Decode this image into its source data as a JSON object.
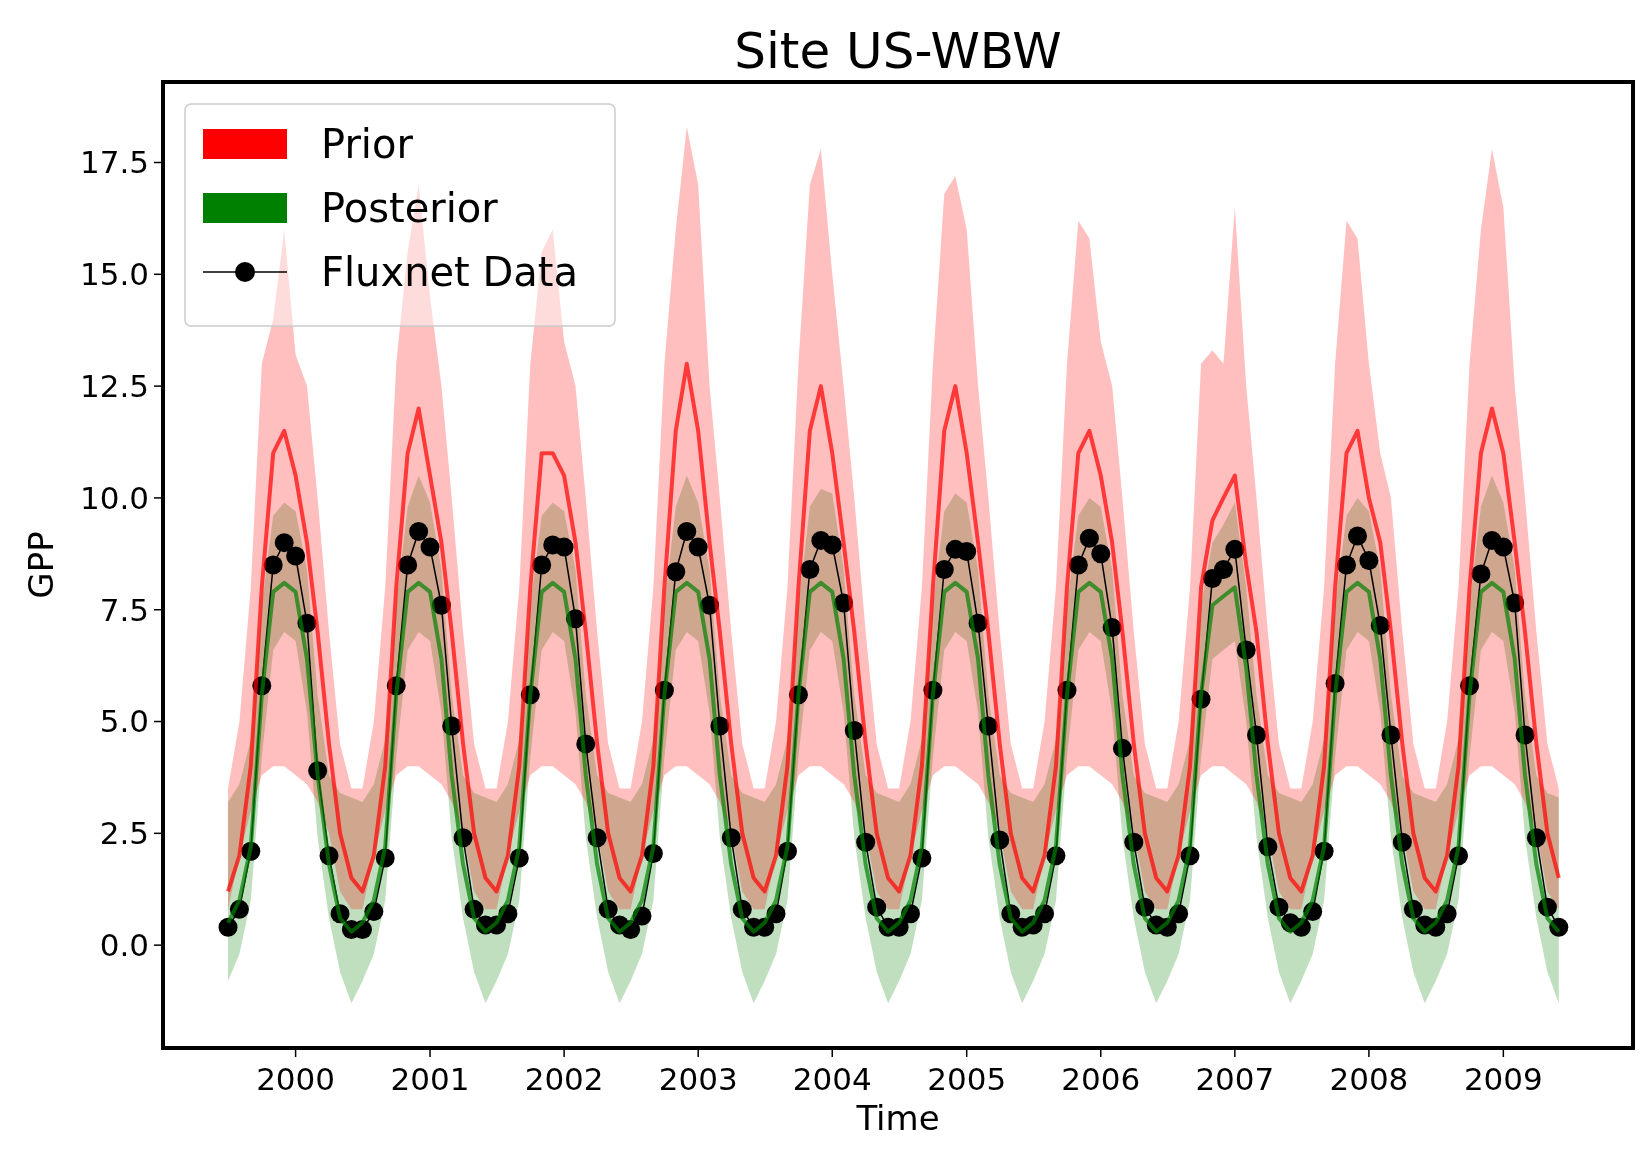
{
  "chart_data": {
    "type": "line",
    "title": "Site US-WBW",
    "xlabel": "Time",
    "ylabel": "GPP",
    "x": [
      "1999-07",
      "1999-08",
      "1999-09",
      "1999-10",
      "1999-11",
      "1999-12",
      "2000-01",
      "2000-02",
      "2000-03",
      "2000-04",
      "2000-05",
      "2000-06",
      "2000-07",
      "2000-08",
      "2000-09",
      "2000-10",
      "2000-11",
      "2000-12",
      "2001-01",
      "2001-02",
      "2001-03",
      "2001-04",
      "2001-05",
      "2001-06",
      "2001-07",
      "2001-08",
      "2001-09",
      "2001-10",
      "2001-11",
      "2001-12",
      "2002-01",
      "2002-02",
      "2002-03",
      "2002-04",
      "2002-05",
      "2002-06",
      "2002-07",
      "2002-08",
      "2002-09",
      "2002-10",
      "2002-11",
      "2002-12",
      "2003-01",
      "2003-02",
      "2003-03",
      "2003-04",
      "2003-05",
      "2003-06",
      "2003-07",
      "2003-08",
      "2003-09",
      "2003-10",
      "2003-11",
      "2003-12",
      "2004-01",
      "2004-02",
      "2004-03",
      "2004-04",
      "2004-05",
      "2004-06",
      "2004-07",
      "2004-08",
      "2004-09",
      "2004-10",
      "2004-11",
      "2004-12",
      "2005-01",
      "2005-02",
      "2005-03",
      "2005-04",
      "2005-05",
      "2005-06",
      "2005-07",
      "2005-08",
      "2005-09",
      "2005-10",
      "2005-11",
      "2005-12",
      "2006-01",
      "2006-02",
      "2006-03",
      "2006-04",
      "2006-05",
      "2006-06",
      "2006-07",
      "2006-08",
      "2006-09",
      "2006-10",
      "2006-11",
      "2006-12",
      "2007-01",
      "2007-02",
      "2007-03",
      "2007-04",
      "2007-05",
      "2007-06",
      "2007-07",
      "2007-08",
      "2007-09",
      "2007-10",
      "2007-11",
      "2007-12",
      "2008-01",
      "2008-02",
      "2008-03",
      "2008-04",
      "2008-05",
      "2008-06",
      "2008-07",
      "2008-08",
      "2008-09",
      "2008-10",
      "2008-11",
      "2008-12",
      "2009-01",
      "2009-02",
      "2009-03",
      "2009-04",
      "2009-05",
      "2009-06"
    ],
    "series": [
      {
        "name": "Prior",
        "marker": "none",
        "color": "#ff0000",
        "values": [
          1.2,
          2.0,
          4.0,
          8.0,
          11.0,
          11.5,
          10.5,
          9.0,
          7.0,
          4.5,
          2.5,
          1.5,
          1.2,
          2.0,
          4.0,
          8.0,
          11.0,
          12.0,
          10.5,
          9.0,
          7.0,
          4.5,
          2.5,
          1.5,
          1.2,
          2.0,
          4.0,
          8.0,
          11.0,
          11.0,
          10.5,
          9.0,
          7.0,
          4.5,
          2.5,
          1.5,
          1.2,
          2.0,
          4.0,
          8.0,
          11.5,
          13.0,
          11.5,
          9.0,
          7.0,
          4.5,
          2.5,
          1.5,
          1.2,
          2.0,
          4.0,
          8.0,
          11.5,
          12.5,
          11.0,
          9.0,
          7.0,
          4.5,
          2.5,
          1.5,
          1.2,
          2.0,
          4.0,
          8.0,
          11.5,
          12.5,
          11.0,
          9.0,
          7.0,
          4.5,
          2.5,
          1.5,
          1.2,
          2.0,
          4.0,
          8.0,
          11.0,
          11.5,
          10.5,
          9.0,
          7.0,
          4.5,
          2.5,
          1.5,
          1.2,
          2.0,
          4.0,
          8.0,
          9.5,
          10.0,
          10.5,
          8.5,
          7.0,
          4.5,
          2.5,
          1.5,
          1.2,
          2.0,
          4.0,
          8.0,
          11.0,
          11.5,
          10.0,
          9.0,
          7.0,
          4.5,
          2.5,
          1.5,
          1.2,
          2.0,
          4.0,
          8.0,
          11.0,
          12.0,
          11.0,
          9.0,
          7.0,
          4.5,
          2.5,
          1.5
        ],
        "lower": [
          0.8,
          2.0,
          3.0,
          3.8,
          4.0,
          4.0,
          3.8,
          3.6,
          3.2,
          2.5,
          1.2,
          0.8,
          0.8,
          2.0,
          3.0,
          3.8,
          4.0,
          4.0,
          3.8,
          3.6,
          3.2,
          2.5,
          1.2,
          0.8,
          0.8,
          2.0,
          3.0,
          3.8,
          4.0,
          4.0,
          3.8,
          3.6,
          3.2,
          2.5,
          1.2,
          0.8,
          0.8,
          2.0,
          3.0,
          3.8,
          4.0,
          4.0,
          3.8,
          3.6,
          3.2,
          2.5,
          1.2,
          0.8,
          0.8,
          2.0,
          3.0,
          3.8,
          4.0,
          4.0,
          3.8,
          3.6,
          3.2,
          2.5,
          1.2,
          0.8,
          0.8,
          2.0,
          3.0,
          3.8,
          4.0,
          4.0,
          3.8,
          3.6,
          3.2,
          2.5,
          1.2,
          0.8,
          0.8,
          2.0,
          3.0,
          3.8,
          4.0,
          4.0,
          3.8,
          3.6,
          3.2,
          2.5,
          1.2,
          0.8,
          0.8,
          2.0,
          3.0,
          3.8,
          4.0,
          4.0,
          3.8,
          3.6,
          3.2,
          2.5,
          1.2,
          0.8,
          0.8,
          2.0,
          3.0,
          3.8,
          4.0,
          4.0,
          3.8,
          3.6,
          3.2,
          2.5,
          1.2,
          0.8,
          0.8,
          2.0,
          3.0,
          3.8,
          4.0,
          4.0,
          3.8,
          3.6,
          3.2,
          2.5,
          1.2,
          0.8
        ],
        "upper": [
          3.5,
          5.0,
          8.0,
          13.0,
          14.0,
          16.0,
          13.2,
          12.5,
          10.0,
          7.0,
          4.5,
          3.5,
          3.5,
          5.0,
          8.0,
          13.0,
          15.5,
          17.0,
          14.5,
          12.5,
          10.0,
          7.0,
          4.5,
          3.5,
          3.5,
          5.0,
          8.0,
          13.0,
          15.5,
          16.0,
          13.5,
          12.5,
          10.0,
          7.0,
          4.5,
          3.5,
          3.5,
          5.0,
          8.0,
          13.0,
          16.0,
          18.3,
          17.0,
          12.5,
          10.0,
          7.0,
          4.5,
          3.5,
          3.5,
          5.0,
          8.0,
          13.0,
          17.0,
          17.8,
          15.0,
          12.5,
          10.0,
          7.0,
          4.5,
          3.5,
          3.5,
          5.0,
          8.0,
          13.0,
          16.8,
          17.2,
          16.0,
          12.5,
          10.0,
          7.0,
          4.5,
          3.5,
          3.5,
          5.0,
          8.0,
          13.0,
          16.2,
          15.8,
          13.5,
          12.5,
          10.0,
          7.0,
          4.5,
          3.5,
          3.5,
          5.0,
          8.0,
          13.0,
          13.3,
          13.0,
          16.5,
          12.5,
          10.0,
          7.0,
          4.5,
          3.5,
          3.5,
          5.0,
          8.0,
          13.0,
          16.2,
          15.8,
          13.0,
          11.0,
          10.0,
          7.0,
          4.5,
          3.5,
          3.5,
          5.0,
          8.0,
          13.0,
          16.0,
          17.8,
          16.5,
          12.5,
          10.0,
          7.0,
          4.5,
          3.5
        ]
      },
      {
        "name": "Posterior",
        "marker": "none",
        "color": "#008000",
        "values": [
          0.5,
          1.0,
          2.2,
          5.6,
          7.9,
          8.1,
          7.9,
          6.4,
          3.8,
          1.8,
          0.6,
          0.3,
          0.5,
          1.0,
          2.2,
          5.6,
          7.9,
          8.1,
          7.9,
          6.4,
          3.8,
          1.8,
          0.6,
          0.3,
          0.5,
          1.0,
          2.2,
          5.6,
          7.9,
          8.1,
          7.9,
          6.4,
          3.8,
          1.8,
          0.6,
          0.3,
          0.5,
          1.0,
          2.2,
          5.6,
          7.9,
          8.1,
          7.9,
          6.4,
          3.8,
          1.8,
          0.6,
          0.3,
          0.5,
          1.0,
          2.2,
          5.6,
          7.9,
          8.1,
          7.9,
          6.4,
          3.8,
          1.8,
          0.6,
          0.3,
          0.5,
          1.0,
          2.2,
          5.6,
          7.9,
          8.1,
          7.9,
          6.4,
          3.8,
          1.8,
          0.6,
          0.3,
          0.5,
          1.0,
          2.2,
          5.6,
          7.9,
          8.1,
          7.9,
          6.4,
          3.8,
          1.8,
          0.6,
          0.3,
          0.5,
          1.0,
          2.2,
          5.6,
          7.6,
          7.8,
          8.0,
          6.2,
          3.8,
          1.8,
          0.6,
          0.3,
          0.5,
          1.0,
          2.2,
          5.6,
          7.9,
          8.1,
          7.9,
          6.4,
          3.8,
          1.8,
          0.6,
          0.3,
          0.5,
          1.0,
          2.2,
          5.6,
          7.9,
          8.1,
          7.9,
          6.4,
          3.8,
          1.8,
          0.6,
          0.3
        ],
        "lower": [
          -0.8,
          -0.2,
          1.0,
          4.2,
          6.6,
          7.0,
          6.8,
          5.2,
          2.4,
          0.6,
          -0.6,
          -1.3,
          -0.8,
          -0.2,
          1.0,
          4.2,
          6.6,
          7.0,
          6.8,
          5.2,
          2.4,
          0.6,
          -0.6,
          -1.3,
          -0.8,
          -0.2,
          1.0,
          4.2,
          6.6,
          7.0,
          6.8,
          5.2,
          2.4,
          0.6,
          -0.6,
          -1.3,
          -0.8,
          -0.2,
          1.0,
          4.2,
          6.6,
          7.0,
          6.8,
          5.2,
          2.4,
          0.6,
          -0.6,
          -1.3,
          -0.8,
          -0.2,
          1.0,
          4.2,
          6.6,
          7.0,
          6.8,
          5.2,
          2.4,
          0.6,
          -0.6,
          -1.3,
          -0.8,
          -0.2,
          1.0,
          4.2,
          6.6,
          7.0,
          6.8,
          5.2,
          2.4,
          0.6,
          -0.6,
          -1.3,
          -0.8,
          -0.2,
          1.0,
          4.2,
          6.6,
          7.0,
          6.8,
          5.2,
          2.4,
          0.6,
          -0.6,
          -1.3,
          -0.8,
          -0.2,
          1.0,
          4.2,
          6.4,
          6.6,
          6.8,
          5.0,
          2.4,
          0.6,
          -0.6,
          -1.3,
          -0.8,
          -0.2,
          1.0,
          4.2,
          6.6,
          7.0,
          6.8,
          5.2,
          2.4,
          0.6,
          -0.6,
          -1.3,
          -0.8,
          -0.2,
          1.0,
          4.2,
          6.6,
          7.0,
          6.8,
          5.2,
          2.4,
          0.6,
          -0.6,
          -1.3
        ],
        "upper": [
          3.2,
          3.6,
          4.6,
          7.6,
          9.6,
          9.9,
          9.7,
          8.4,
          5.6,
          3.8,
          3.4,
          3.3,
          3.2,
          3.6,
          4.6,
          7.6,
          9.8,
          10.5,
          9.9,
          8.4,
          5.6,
          3.8,
          3.4,
          3.3,
          3.2,
          3.6,
          4.6,
          7.6,
          9.6,
          9.9,
          9.7,
          8.4,
          5.6,
          3.8,
          3.4,
          3.3,
          3.2,
          3.6,
          4.6,
          7.6,
          9.8,
          10.5,
          9.9,
          8.4,
          5.6,
          3.8,
          3.4,
          3.3,
          3.2,
          3.6,
          4.6,
          7.6,
          9.8,
          10.2,
          10.1,
          8.4,
          5.6,
          3.8,
          3.4,
          3.3,
          3.2,
          3.6,
          4.6,
          7.6,
          9.7,
          10.1,
          9.9,
          8.4,
          5.6,
          3.8,
          3.4,
          3.3,
          3.2,
          3.6,
          4.6,
          7.6,
          9.6,
          10.0,
          9.8,
          8.4,
          5.6,
          3.8,
          3.4,
          3.3,
          3.2,
          3.6,
          4.6,
          7.6,
          9.0,
          9.4,
          9.9,
          8.0,
          5.6,
          3.8,
          3.4,
          3.3,
          3.2,
          3.6,
          4.6,
          7.6,
          9.6,
          10.0,
          9.7,
          8.4,
          5.6,
          3.8,
          3.4,
          3.3,
          3.2,
          3.6,
          4.6,
          7.6,
          9.8,
          10.5,
          9.9,
          8.4,
          5.6,
          3.8,
          3.4,
          3.3
        ]
      },
      {
        "name": "Fluxnet Data",
        "marker": "circle",
        "color": "#000000",
        "values": [
          0.4,
          0.8,
          2.1,
          5.8,
          8.5,
          9.0,
          8.7,
          7.2,
          3.9,
          2.0,
          0.7,
          0.35,
          0.35,
          0.75,
          1.95,
          5.8,
          8.5,
          9.25,
          8.9,
          7.6,
          4.9,
          2.4,
          0.8,
          0.45,
          0.45,
          0.7,
          1.95,
          5.6,
          8.5,
          8.95,
          8.9,
          7.3,
          4.5,
          2.4,
          0.8,
          0.45,
          0.35,
          0.65,
          2.05,
          5.7,
          8.35,
          9.25,
          8.9,
          7.6,
          4.9,
          2.4,
          0.8,
          0.4,
          0.4,
          0.7,
          2.1,
          5.6,
          8.4,
          9.05,
          8.95,
          7.65,
          4.8,
          2.3,
          0.85,
          0.4,
          0.4,
          0.7,
          1.95,
          5.7,
          8.4,
          8.85,
          8.8,
          7.2,
          4.9,
          2.35,
          0.7,
          0.4,
          0.45,
          0.7,
          2.0,
          5.7,
          8.5,
          9.1,
          8.75,
          7.1,
          4.4,
          2.3,
          0.85,
          0.45,
          0.4,
          0.7,
          2.0,
          5.5,
          8.2,
          8.4,
          8.85,
          6.6,
          4.7,
          2.2,
          0.85,
          0.5,
          0.4,
          0.75,
          2.1,
          5.85,
          8.5,
          9.15,
          8.6,
          7.15,
          4.7,
          2.3,
          0.8,
          0.45,
          0.4,
          0.7,
          2.0,
          5.8,
          8.3,
          9.05,
          8.9,
          7.65,
          4.7,
          2.4,
          0.85,
          0.4
        ]
      }
    ],
    "legend": "top left",
    "grid": false,
    "xlim": [
      "1999-01-05",
      "2009-12-20"
    ],
    "xticks": [
      "2000",
      "2001",
      "2002",
      "2003",
      "2004",
      "2005",
      "2006",
      "2007",
      "2008",
      "2009"
    ],
    "ylim": [
      -2.3,
      19.3
    ],
    "yticks": [
      {
        "value": 0,
        "label": "0.0"
      },
      {
        "value": 2.5,
        "label": "2.5"
      },
      {
        "value": 5,
        "label": "5.0"
      },
      {
        "value": 7.5,
        "label": "7.5"
      },
      {
        "value": 10,
        "label": "10.0"
      },
      {
        "value": 12.5,
        "label": "12.5"
      },
      {
        "value": 15,
        "label": "15.0"
      },
      {
        "value": 17.5,
        "label": "17.5"
      }
    ]
  }
}
